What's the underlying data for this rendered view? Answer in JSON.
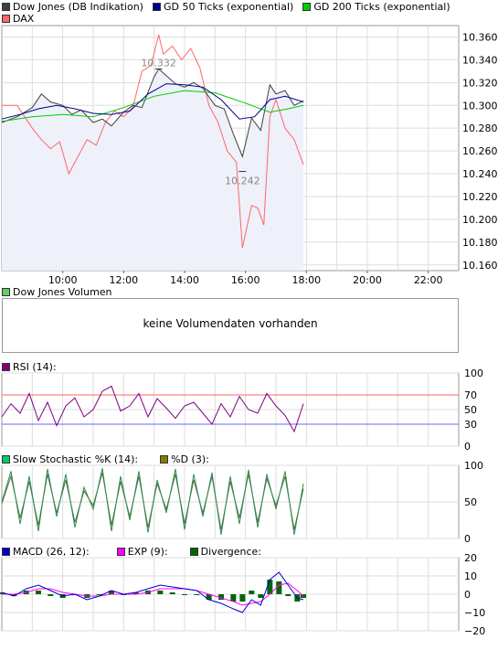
{
  "chart_data": [
    {
      "type": "line",
      "legend": [
        {
          "name": "Dow Jones (DB Indikation)",
          "color": "#404040"
        },
        {
          "name": "GD 50 Ticks (exponential)",
          "color": "#00008b"
        },
        {
          "name": "GD 200 Ticks (exponential)",
          "color": "#00cc00"
        },
        {
          "name": "DAX",
          "color": "#ff6666"
        }
      ],
      "x_ticks": [
        "10:00",
        "12:00",
        "14:00",
        "16:00",
        "18:00",
        "20:00",
        "22:00"
      ],
      "y_ticks": [
        "10.360",
        "10.340",
        "10.320",
        "10.300",
        "10.280",
        "10.260",
        "10.240",
        "10.220",
        "10.200",
        "10.180",
        "10.160"
      ],
      "ylim": [
        10155,
        10370
      ],
      "annotations": [
        {
          "text": "10.332",
          "x": 13.15,
          "y": 10332
        },
        {
          "text": "10.242",
          "x": 15.9,
          "y": 10242
        }
      ],
      "series": [
        {
          "name": "Dow Jones (DB Indikation)",
          "color": "#404040",
          "x": [
            8.0,
            8.5,
            9.0,
            9.3,
            9.6,
            10.0,
            10.3,
            10.6,
            11.0,
            11.3,
            11.6,
            12.0,
            12.3,
            12.6,
            13.0,
            13.15,
            13.4,
            13.7,
            14.0,
            14.3,
            14.6,
            15.0,
            15.3,
            15.6,
            15.9,
            16.2,
            16.5,
            16.8,
            17.0,
            17.3,
            17.6,
            17.9
          ],
          "values": [
            10285,
            10290,
            10298,
            10310,
            10303,
            10300,
            10292,
            10296,
            10285,
            10288,
            10282,
            10294,
            10300,
            10298,
            10325,
            10332,
            10326,
            10319,
            10316,
            10320,
            10315,
            10300,
            10297,
            10275,
            10255,
            10289,
            10278,
            10318,
            10310,
            10313,
            10300,
            10304
          ]
        },
        {
          "name": "DAX",
          "color": "#ff6666",
          "x": [
            8.0,
            8.5,
            9.0,
            9.3,
            9.6,
            9.9,
            10.2,
            10.5,
            10.8,
            11.1,
            11.4,
            11.7,
            12.0,
            12.3,
            12.6,
            12.9,
            13.15,
            13.3,
            13.6,
            13.9,
            14.2,
            14.5,
            14.8,
            15.1,
            15.4,
            15.7,
            15.9,
            16.2,
            16.4,
            16.6,
            16.8,
            17.0,
            17.3,
            17.6,
            17.9
          ],
          "values": [
            10300,
            10300,
            10280,
            10270,
            10262,
            10268,
            10240,
            10255,
            10270,
            10265,
            10285,
            10295,
            10290,
            10298,
            10330,
            10335,
            10362,
            10345,
            10352,
            10340,
            10350,
            10333,
            10300,
            10285,
            10260,
            10250,
            10175,
            10212,
            10210,
            10195,
            10290,
            10305,
            10280,
            10270,
            10248
          ]
        },
        {
          "name": "GD 50 Ticks (exponential)",
          "color": "#00008b",
          "x": [
            8.0,
            8.6,
            9.2,
            9.8,
            10.4,
            11.0,
            11.6,
            12.2,
            12.8,
            13.4,
            14.0,
            14.6,
            15.2,
            15.8,
            16.3,
            16.8,
            17.3,
            17.9
          ],
          "values": [
            10288,
            10292,
            10297,
            10300,
            10297,
            10293,
            10292,
            10295,
            10310,
            10319,
            10318,
            10316,
            10305,
            10288,
            10290,
            10305,
            10308,
            10303
          ]
        },
        {
          "name": "GD 200 Ticks (exponential)",
          "color": "#00cc00",
          "x": [
            8.0,
            9.0,
            10.0,
            11.0,
            12.0,
            13.0,
            14.0,
            15.0,
            16.0,
            16.8,
            17.4,
            17.9
          ],
          "values": [
            10286,
            10290,
            10292,
            10290,
            10298,
            10308,
            10313,
            10311,
            10302,
            10294,
            10297,
            10300
          ]
        }
      ]
    },
    {
      "type": "bar",
      "legend": [
        {
          "name": "Dow Jones Volumen",
          "color": "#66cc66"
        }
      ],
      "message": "keine Volumendaten vorhanden"
    },
    {
      "type": "line",
      "legend": [
        {
          "name": "RSI (14):",
          "color": "#800080"
        }
      ],
      "y_ticks": [
        "100",
        "70",
        "50",
        "30",
        "0"
      ],
      "ylim": [
        0,
        100
      ],
      "levels": [
        {
          "value": 70,
          "color": "#ff6666"
        },
        {
          "value": 30,
          "color": "#6666ff"
        }
      ],
      "series": [
        {
          "name": "RSI (14):",
          "color": "#800080",
          "x": [
            8.0,
            8.3,
            8.6,
            8.9,
            9.2,
            9.5,
            9.8,
            10.1,
            10.4,
            10.7,
            11.0,
            11.3,
            11.6,
            11.9,
            12.2,
            12.5,
            12.8,
            13.1,
            13.4,
            13.7,
            14.0,
            14.3,
            14.6,
            14.9,
            15.2,
            15.5,
            15.8,
            16.1,
            16.4,
            16.7,
            17.0,
            17.3,
            17.6,
            17.9
          ],
          "values": [
            40,
            58,
            45,
            72,
            35,
            60,
            28,
            55,
            66,
            40,
            50,
            75,
            82,
            48,
            55,
            72,
            40,
            65,
            52,
            38,
            55,
            60,
            45,
            30,
            58,
            40,
            68,
            50,
            45,
            72,
            55,
            42,
            20,
            58
          ]
        }
      ]
    },
    {
      "type": "line",
      "legend": [
        {
          "name": "Slow Stochastic %K (14):",
          "color": "#00cc66"
        },
        {
          "name": "%D (3):",
          "color": "#808000"
        }
      ],
      "y_ticks": [
        "100",
        "50",
        "0"
      ],
      "ylim": [
        0,
        100
      ],
      "series": [
        {
          "name": "Slow Stochastic %K (14):",
          "color": "#2e8b57",
          "x": [
            8.0,
            8.3,
            8.6,
            8.9,
            9.2,
            9.5,
            9.8,
            10.1,
            10.4,
            10.7,
            11.0,
            11.3,
            11.6,
            11.9,
            12.2,
            12.5,
            12.8,
            13.1,
            13.4,
            13.7,
            14.0,
            14.3,
            14.6,
            14.9,
            15.2,
            15.5,
            15.8,
            16.1,
            16.4,
            16.7,
            17.0,
            17.3,
            17.6,
            17.9
          ],
          "values": [
            50,
            92,
            20,
            85,
            10,
            95,
            30,
            88,
            15,
            70,
            40,
            96,
            10,
            85,
            25,
            92,
            8,
            80,
            35,
            95,
            12,
            88,
            30,
            90,
            5,
            85,
            20,
            94,
            15,
            88,
            40,
            92,
            5,
            75
          ]
        },
        {
          "name": "%D (3):",
          "color": "#556b2f",
          "x": [
            8.0,
            8.3,
            8.6,
            8.9,
            9.2,
            9.5,
            9.8,
            10.1,
            10.4,
            10.7,
            11.0,
            11.3,
            11.6,
            11.9,
            12.2,
            12.5,
            12.8,
            13.1,
            13.4,
            13.7,
            14.0,
            14.3,
            14.6,
            14.9,
            15.2,
            15.5,
            15.8,
            16.1,
            16.4,
            16.7,
            17.0,
            17.3,
            17.6,
            17.9
          ],
          "values": [
            48,
            85,
            28,
            78,
            18,
            88,
            35,
            80,
            22,
            65,
            45,
            90,
            18,
            78,
            30,
            85,
            15,
            75,
            40,
            88,
            20,
            80,
            35,
            85,
            12,
            78,
            28,
            88,
            22,
            82,
            45,
            85,
            12,
            68
          ]
        }
      ]
    },
    {
      "type": "line",
      "legend": [
        {
          "name": "MACD (26, 12):",
          "color": "#0000cc"
        },
        {
          "name": "EXP (9):",
          "color": "#ff00ff"
        },
        {
          "name": "Divergence:",
          "color": "#006600"
        }
      ],
      "y_ticks": [
        "20",
        "10",
        "0",
        "−10",
        "−20"
      ],
      "ylim": [
        -20,
        20
      ],
      "series": [
        {
          "name": "MACD (26, 12):",
          "color": "#0000cc",
          "x": [
            8.0,
            8.4,
            8.8,
            9.2,
            9.6,
            10.0,
            10.4,
            10.8,
            11.2,
            11.6,
            12.0,
            12.4,
            12.8,
            13.2,
            13.6,
            14.0,
            14.4,
            14.8,
            15.2,
            15.6,
            15.9,
            16.2,
            16.5,
            16.8,
            17.1,
            17.4,
            17.7,
            17.9
          ],
          "values": [
            1,
            -1,
            3,
            5,
            2,
            -1,
            0,
            -3,
            -1,
            2,
            0,
            1,
            3,
            5,
            4,
            3,
            2,
            -3,
            -5,
            -8,
            -10,
            -3,
            -6,
            8,
            12,
            5,
            -2,
            -3
          ]
        },
        {
          "name": "EXP (9):",
          "color": "#ff00ff",
          "x": [
            8.0,
            8.4,
            8.8,
            9.2,
            9.6,
            10.0,
            10.4,
            10.8,
            11.2,
            11.6,
            12.0,
            12.4,
            12.8,
            13.2,
            13.6,
            14.0,
            14.4,
            14.8,
            15.2,
            15.6,
            15.9,
            16.2,
            16.5,
            16.8,
            17.1,
            17.4,
            17.7,
            17.9
          ],
          "values": [
            0,
            0,
            1,
            3,
            3,
            1,
            0,
            -1,
            -1,
            0,
            0,
            0,
            1,
            3,
            3,
            3,
            2,
            0,
            -2,
            -4,
            -6,
            -5,
            -4,
            0,
            5,
            6,
            2,
            -1
          ]
        },
        {
          "name": "Divergence:",
          "color": "#006600",
          "type": "bar",
          "x": [
            8.0,
            8.4,
            8.8,
            9.2,
            9.6,
            10.0,
            10.4,
            10.8,
            11.2,
            11.6,
            12.0,
            12.4,
            12.8,
            13.2,
            13.6,
            14.0,
            14.4,
            14.8,
            15.2,
            15.6,
            15.9,
            16.2,
            16.5,
            16.8,
            17.1,
            17.4,
            17.7,
            17.9
          ],
          "values": [
            1,
            -1,
            2,
            2,
            -1,
            -2,
            0,
            -2,
            0,
            2,
            0,
            1,
            2,
            2,
            1,
            0,
            0,
            -3,
            -3,
            -4,
            -4,
            2,
            -2,
            8,
            7,
            -1,
            -4,
            -2
          ]
        }
      ]
    }
  ]
}
